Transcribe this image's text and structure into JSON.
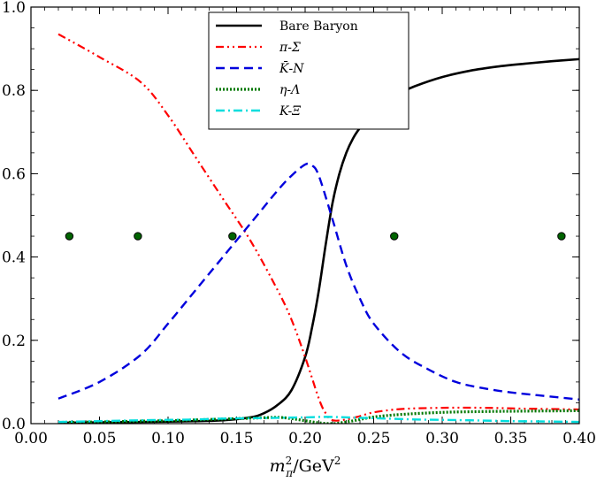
{
  "chart_data": {
    "type": "line",
    "title": "",
    "xlabel": "m_π²/GeV²",
    "ylabel": "",
    "xlim": [
      0.0,
      0.4
    ],
    "ylim": [
      0.0,
      1.0
    ],
    "x_ticks": [
      "0.00",
      "0.05",
      "0.10",
      "0.15",
      "0.20",
      "0.25",
      "0.30",
      "0.35",
      "0.40"
    ],
    "y_ticks": [
      "0.0",
      "0.2",
      "0.4",
      "0.6",
      "0.8",
      "1.0"
    ],
    "legend_position": "top-center",
    "series": [
      {
        "name": "Bare Baryon",
        "style": "solid",
        "color": "#000000",
        "x": [
          0.02,
          0.05,
          0.08,
          0.1,
          0.12,
          0.14,
          0.16,
          0.17,
          0.18,
          0.19,
          0.2,
          0.205,
          0.21,
          0.215,
          0.22,
          0.225,
          0.23,
          0.235,
          0.24,
          0.25,
          0.26,
          0.27,
          0.28,
          0.3,
          0.32,
          0.34,
          0.36,
          0.38,
          0.4
        ],
        "values": [
          0.002,
          0.003,
          0.004,
          0.005,
          0.006,
          0.008,
          0.015,
          0.025,
          0.045,
          0.08,
          0.16,
          0.23,
          0.32,
          0.43,
          0.53,
          0.6,
          0.65,
          0.685,
          0.71,
          0.75,
          0.775,
          0.795,
          0.81,
          0.832,
          0.847,
          0.857,
          0.864,
          0.87,
          0.875
        ]
      },
      {
        "name": "π-Σ",
        "style": "dashdotdot",
        "color": "#ff0000",
        "x": [
          0.02,
          0.05,
          0.08,
          0.1,
          0.12,
          0.14,
          0.16,
          0.18,
          0.19,
          0.2,
          0.21,
          0.215,
          0.22,
          0.23,
          0.24,
          0.25,
          0.27,
          0.3,
          0.33,
          0.36,
          0.4
        ],
        "values": [
          0.935,
          0.88,
          0.82,
          0.74,
          0.64,
          0.54,
          0.44,
          0.32,
          0.25,
          0.16,
          0.06,
          0.025,
          0.008,
          0.01,
          0.018,
          0.027,
          0.035,
          0.038,
          0.038,
          0.036,
          0.034
        ]
      },
      {
        "name": "K̄-N",
        "style": "dashed",
        "color": "#0000dd",
        "x": [
          0.02,
          0.05,
          0.08,
          0.1,
          0.12,
          0.14,
          0.16,
          0.18,
          0.19,
          0.2,
          0.205,
          0.21,
          0.22,
          0.23,
          0.24,
          0.25,
          0.27,
          0.29,
          0.31,
          0.33,
          0.35,
          0.37,
          0.4
        ],
        "values": [
          0.06,
          0.1,
          0.165,
          0.24,
          0.32,
          0.4,
          0.48,
          0.56,
          0.595,
          0.622,
          0.62,
          0.595,
          0.49,
          0.38,
          0.3,
          0.24,
          0.17,
          0.13,
          0.1,
          0.085,
          0.075,
          0.068,
          0.058
        ]
      },
      {
        "name": "η-Λ",
        "style": "dotted",
        "color": "#007700",
        "x": [
          0.02,
          0.05,
          0.08,
          0.1,
          0.12,
          0.14,
          0.16,
          0.18,
          0.19,
          0.2,
          0.21,
          0.22,
          0.23,
          0.24,
          0.25,
          0.27,
          0.3,
          0.33,
          0.36,
          0.4
        ],
        "values": [
          0.003,
          0.004,
          0.006,
          0.007,
          0.009,
          0.011,
          0.013,
          0.015,
          0.012,
          0.007,
          0.002,
          0.0,
          0.004,
          0.01,
          0.016,
          0.022,
          0.027,
          0.029,
          0.03,
          0.031
        ]
      },
      {
        "name": "K-Ξ",
        "style": "dashdot",
        "color": "#00dddd",
        "x": [
          0.02,
          0.05,
          0.08,
          0.1,
          0.12,
          0.14,
          0.16,
          0.18,
          0.2,
          0.21,
          0.22,
          0.24,
          0.26,
          0.28,
          0.3,
          0.32,
          0.35,
          0.38,
          0.4
        ],
        "values": [
          0.004,
          0.006,
          0.008,
          0.009,
          0.01,
          0.012,
          0.013,
          0.014,
          0.015,
          0.016,
          0.016,
          0.014,
          0.012,
          0.01,
          0.009,
          0.008,
          0.006,
          0.005,
          0.004
        ]
      }
    ],
    "markers": {
      "y": 0.45,
      "x": [
        0.028,
        0.078,
        0.147,
        0.265,
        0.387
      ],
      "color": "#006400"
    }
  }
}
